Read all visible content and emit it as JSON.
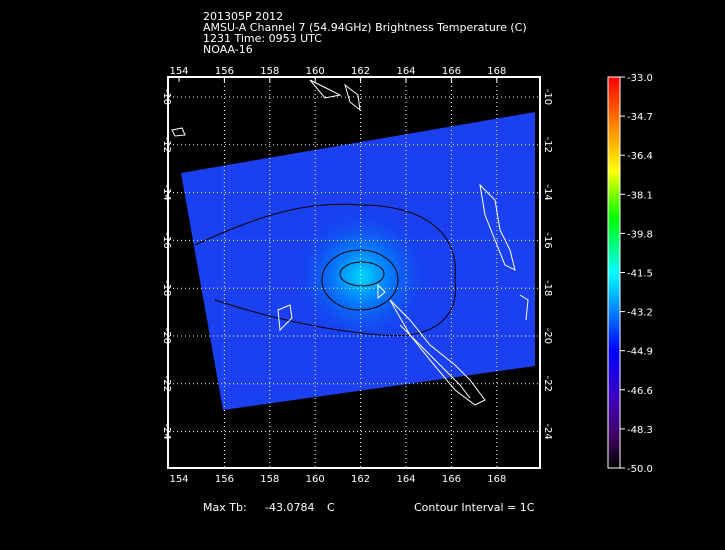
{
  "title": {
    "line1": "201305P 2012",
    "line2": "AMSU-A Channel 7 (54.94GHz) Brightness Temperature (C)",
    "line3": "1231 Time: 0953 UTC",
    "line4": "NOAA-16"
  },
  "axes": {
    "lon_ticks": [
      "154",
      "156",
      "158",
      "160",
      "162",
      "164",
      "166",
      "168"
    ],
    "lat_ticks": [
      "-10",
      "-12",
      "-14",
      "-16",
      "-18",
      "-20",
      "-22",
      "-24"
    ]
  },
  "colorbar": {
    "labels": [
      "-33.0",
      "-34.7",
      "-36.4",
      "-38.1",
      "-39.8",
      "-41.5",
      "-43.2",
      "-44.9",
      "-46.6",
      "-48.3",
      "-50.0"
    ],
    "colors": [
      "#ff0000",
      "#ff8000",
      "#ffff00",
      "#00ff00",
      "#00ffff",
      "#0080ff",
      "#0000ff",
      "#4000c0",
      "#400060",
      "#000000"
    ]
  },
  "footer": {
    "max_tb_label": "Max Tb:",
    "max_tb_value": "-43.0784",
    "max_tb_unit": "C",
    "contour_interval": "Contour Interval = 1C"
  }
}
